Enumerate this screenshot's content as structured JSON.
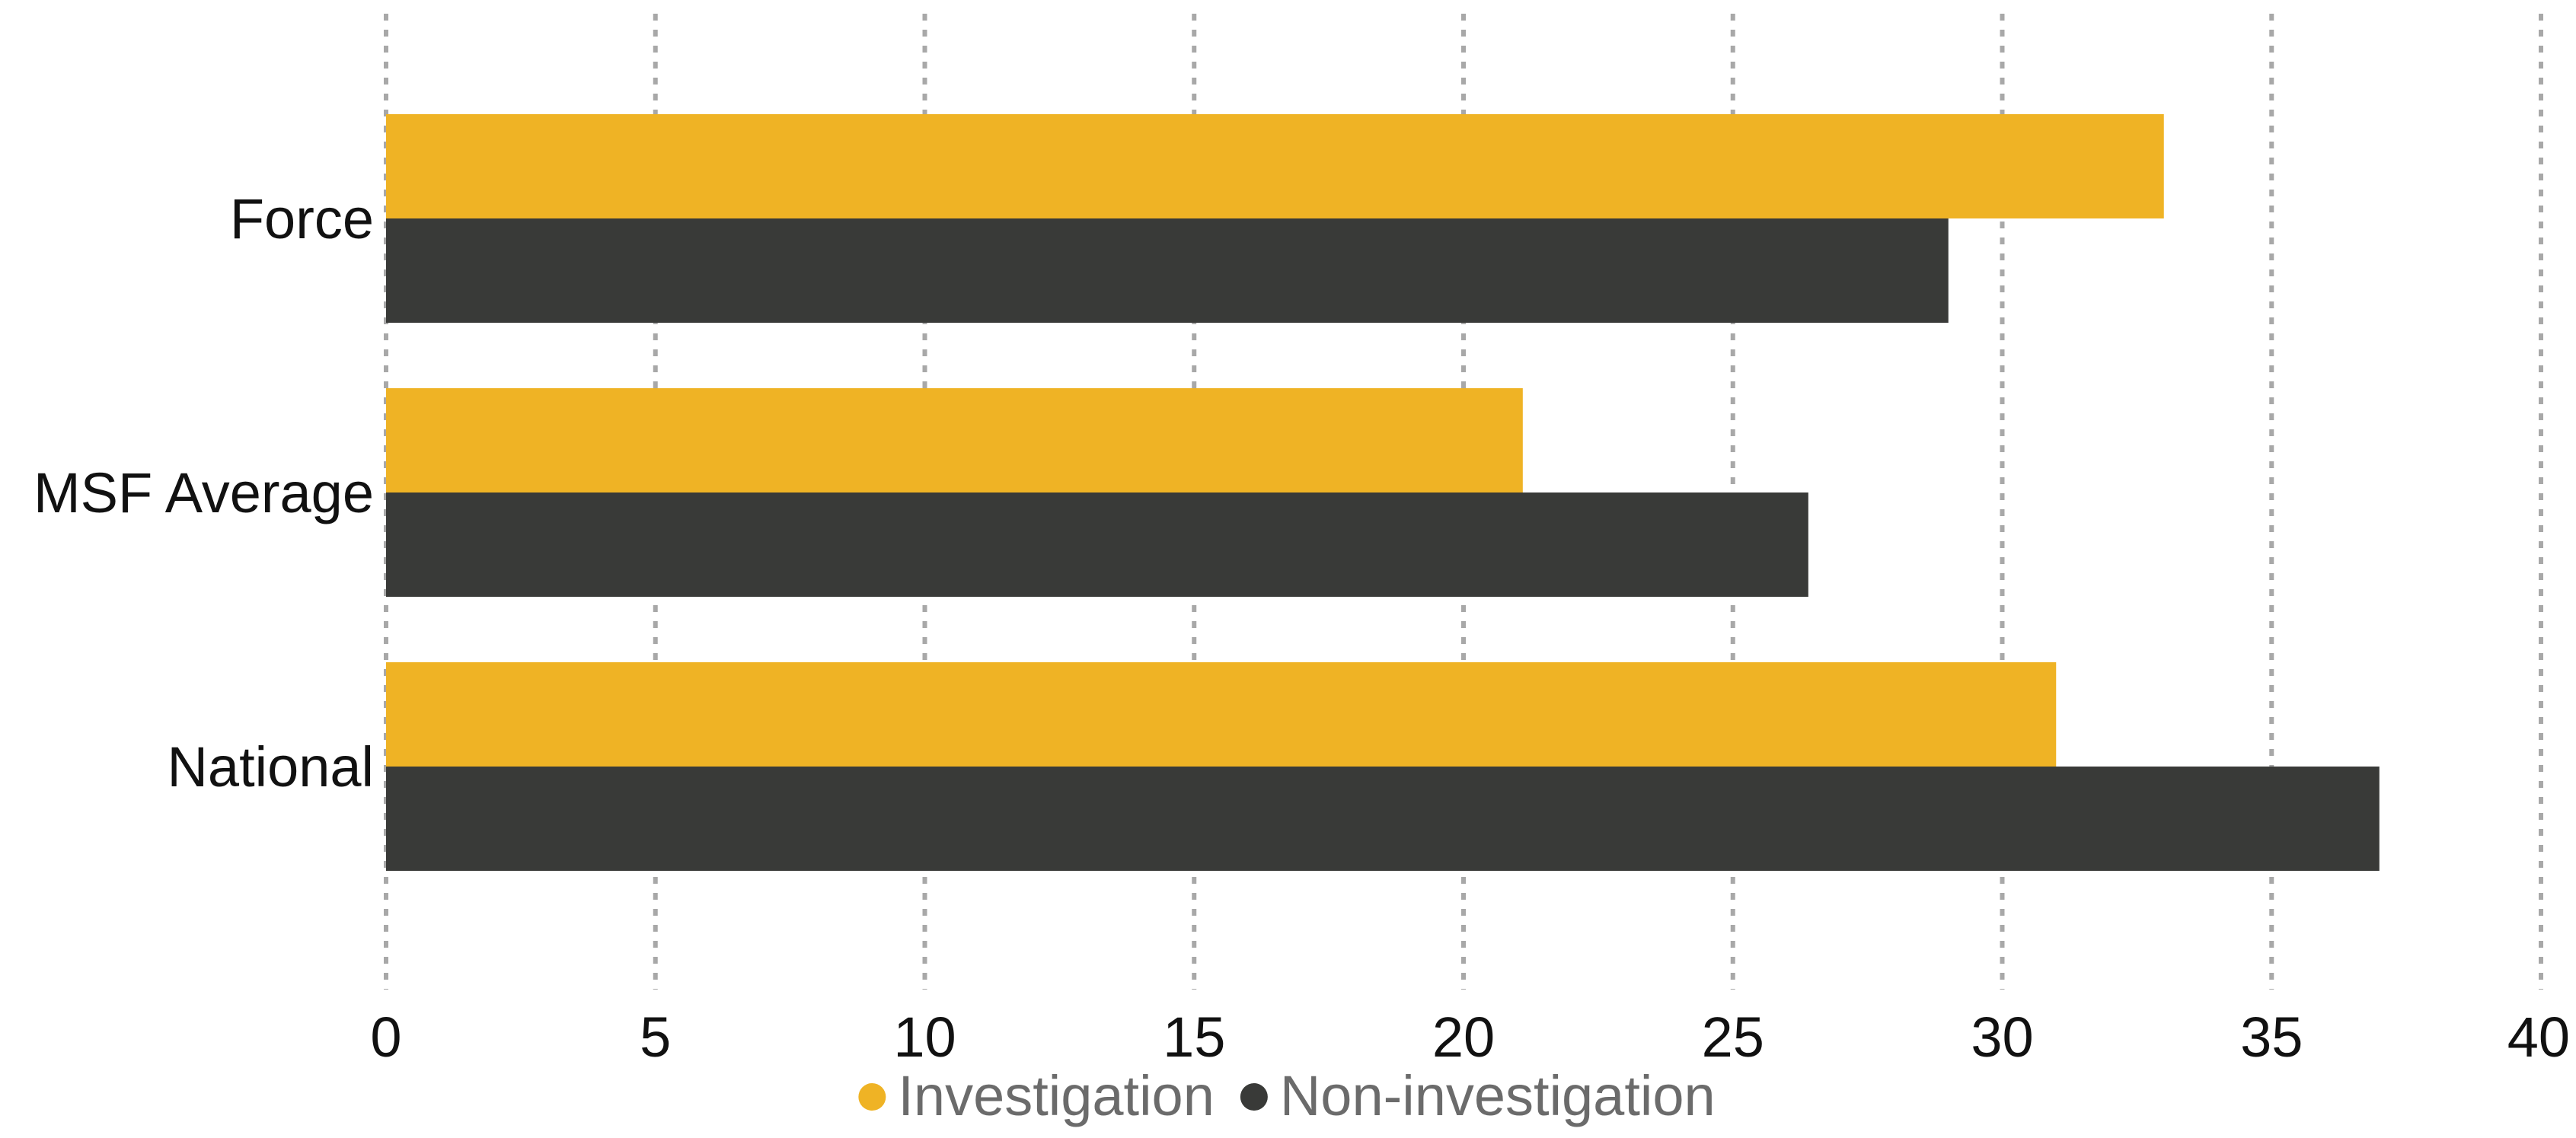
{
  "chart_data": {
    "type": "bar",
    "orientation": "horizontal",
    "title": "",
    "xlabel": "",
    "ylabel": "",
    "categories": [
      "Force",
      "MSF Average",
      "National"
    ],
    "series": [
      {
        "name": "Investigation",
        "color": "#EFB325",
        "values": [
          33,
          21.1,
          31
        ]
      },
      {
        "name": "Non-investigation",
        "color": "#393A38",
        "values": [
          29,
          26.4,
          37
        ]
      }
    ],
    "xlim": [
      0,
      40
    ],
    "xticks": [
      "0",
      "5",
      "10",
      "15",
      "20",
      "25",
      "30",
      "35",
      "40"
    ],
    "grid": "vertical dotted",
    "legend": "bottom-center"
  }
}
